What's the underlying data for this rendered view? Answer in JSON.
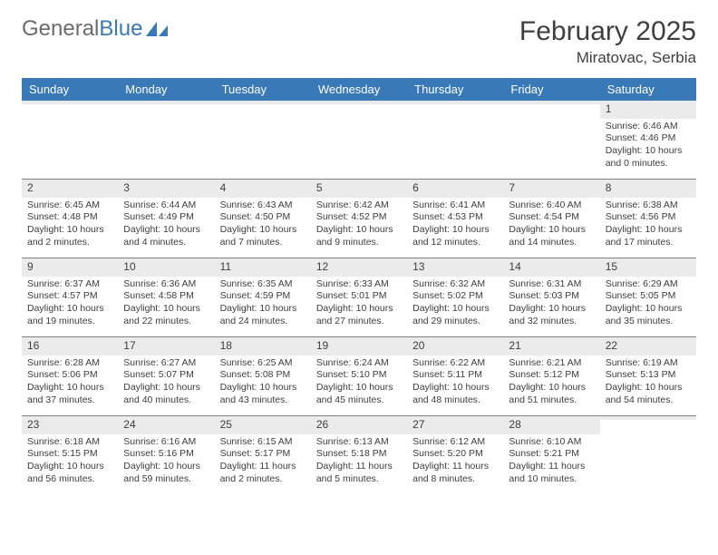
{
  "branding": {
    "logo_text_1": "General",
    "logo_text_2": "Blue",
    "logo_color_gray": "#6b6b6b",
    "logo_color_blue": "#3a79b7"
  },
  "header": {
    "month_title": "February 2025",
    "location": "Miratovac, Serbia"
  },
  "colors": {
    "header_bg": "#3a79b7",
    "header_text": "#ffffff",
    "daynum_bg": "#ebebeb",
    "rule": "#808080",
    "text": "#3d3d3d",
    "background": "#ffffff"
  },
  "typography": {
    "month_fontsize": 30,
    "location_fontsize": 17,
    "dayheader_fontsize": 13,
    "cell_fontsize": 10.5
  },
  "day_headers": [
    "Sunday",
    "Monday",
    "Tuesday",
    "Wednesday",
    "Thursday",
    "Friday",
    "Saturday"
  ],
  "weeks": [
    [
      {
        "num": "",
        "sunrise": "",
        "sunset": "",
        "daylight": ""
      },
      {
        "num": "",
        "sunrise": "",
        "sunset": "",
        "daylight": ""
      },
      {
        "num": "",
        "sunrise": "",
        "sunset": "",
        "daylight": ""
      },
      {
        "num": "",
        "sunrise": "",
        "sunset": "",
        "daylight": ""
      },
      {
        "num": "",
        "sunrise": "",
        "sunset": "",
        "daylight": ""
      },
      {
        "num": "",
        "sunrise": "",
        "sunset": "",
        "daylight": ""
      },
      {
        "num": "1",
        "sunrise": "Sunrise: 6:46 AM",
        "sunset": "Sunset: 4:46 PM",
        "daylight": "Daylight: 10 hours and 0 minutes."
      }
    ],
    [
      {
        "num": "2",
        "sunrise": "Sunrise: 6:45 AM",
        "sunset": "Sunset: 4:48 PM",
        "daylight": "Daylight: 10 hours and 2 minutes."
      },
      {
        "num": "3",
        "sunrise": "Sunrise: 6:44 AM",
        "sunset": "Sunset: 4:49 PM",
        "daylight": "Daylight: 10 hours and 4 minutes."
      },
      {
        "num": "4",
        "sunrise": "Sunrise: 6:43 AM",
        "sunset": "Sunset: 4:50 PM",
        "daylight": "Daylight: 10 hours and 7 minutes."
      },
      {
        "num": "5",
        "sunrise": "Sunrise: 6:42 AM",
        "sunset": "Sunset: 4:52 PM",
        "daylight": "Daylight: 10 hours and 9 minutes."
      },
      {
        "num": "6",
        "sunrise": "Sunrise: 6:41 AM",
        "sunset": "Sunset: 4:53 PM",
        "daylight": "Daylight: 10 hours and 12 minutes."
      },
      {
        "num": "7",
        "sunrise": "Sunrise: 6:40 AM",
        "sunset": "Sunset: 4:54 PM",
        "daylight": "Daylight: 10 hours and 14 minutes."
      },
      {
        "num": "8",
        "sunrise": "Sunrise: 6:38 AM",
        "sunset": "Sunset: 4:56 PM",
        "daylight": "Daylight: 10 hours and 17 minutes."
      }
    ],
    [
      {
        "num": "9",
        "sunrise": "Sunrise: 6:37 AM",
        "sunset": "Sunset: 4:57 PM",
        "daylight": "Daylight: 10 hours and 19 minutes."
      },
      {
        "num": "10",
        "sunrise": "Sunrise: 6:36 AM",
        "sunset": "Sunset: 4:58 PM",
        "daylight": "Daylight: 10 hours and 22 minutes."
      },
      {
        "num": "11",
        "sunrise": "Sunrise: 6:35 AM",
        "sunset": "Sunset: 4:59 PM",
        "daylight": "Daylight: 10 hours and 24 minutes."
      },
      {
        "num": "12",
        "sunrise": "Sunrise: 6:33 AM",
        "sunset": "Sunset: 5:01 PM",
        "daylight": "Daylight: 10 hours and 27 minutes."
      },
      {
        "num": "13",
        "sunrise": "Sunrise: 6:32 AM",
        "sunset": "Sunset: 5:02 PM",
        "daylight": "Daylight: 10 hours and 29 minutes."
      },
      {
        "num": "14",
        "sunrise": "Sunrise: 6:31 AM",
        "sunset": "Sunset: 5:03 PM",
        "daylight": "Daylight: 10 hours and 32 minutes."
      },
      {
        "num": "15",
        "sunrise": "Sunrise: 6:29 AM",
        "sunset": "Sunset: 5:05 PM",
        "daylight": "Daylight: 10 hours and 35 minutes."
      }
    ],
    [
      {
        "num": "16",
        "sunrise": "Sunrise: 6:28 AM",
        "sunset": "Sunset: 5:06 PM",
        "daylight": "Daylight: 10 hours and 37 minutes."
      },
      {
        "num": "17",
        "sunrise": "Sunrise: 6:27 AM",
        "sunset": "Sunset: 5:07 PM",
        "daylight": "Daylight: 10 hours and 40 minutes."
      },
      {
        "num": "18",
        "sunrise": "Sunrise: 6:25 AM",
        "sunset": "Sunset: 5:08 PM",
        "daylight": "Daylight: 10 hours and 43 minutes."
      },
      {
        "num": "19",
        "sunrise": "Sunrise: 6:24 AM",
        "sunset": "Sunset: 5:10 PM",
        "daylight": "Daylight: 10 hours and 45 minutes."
      },
      {
        "num": "20",
        "sunrise": "Sunrise: 6:22 AM",
        "sunset": "Sunset: 5:11 PM",
        "daylight": "Daylight: 10 hours and 48 minutes."
      },
      {
        "num": "21",
        "sunrise": "Sunrise: 6:21 AM",
        "sunset": "Sunset: 5:12 PM",
        "daylight": "Daylight: 10 hours and 51 minutes."
      },
      {
        "num": "22",
        "sunrise": "Sunrise: 6:19 AM",
        "sunset": "Sunset: 5:13 PM",
        "daylight": "Daylight: 10 hours and 54 minutes."
      }
    ],
    [
      {
        "num": "23",
        "sunrise": "Sunrise: 6:18 AM",
        "sunset": "Sunset: 5:15 PM",
        "daylight": "Daylight: 10 hours and 56 minutes."
      },
      {
        "num": "24",
        "sunrise": "Sunrise: 6:16 AM",
        "sunset": "Sunset: 5:16 PM",
        "daylight": "Daylight: 10 hours and 59 minutes."
      },
      {
        "num": "25",
        "sunrise": "Sunrise: 6:15 AM",
        "sunset": "Sunset: 5:17 PM",
        "daylight": "Daylight: 11 hours and 2 minutes."
      },
      {
        "num": "26",
        "sunrise": "Sunrise: 6:13 AM",
        "sunset": "Sunset: 5:18 PM",
        "daylight": "Daylight: 11 hours and 5 minutes."
      },
      {
        "num": "27",
        "sunrise": "Sunrise: 6:12 AM",
        "sunset": "Sunset: 5:20 PM",
        "daylight": "Daylight: 11 hours and 8 minutes."
      },
      {
        "num": "28",
        "sunrise": "Sunrise: 6:10 AM",
        "sunset": "Sunset: 5:21 PM",
        "daylight": "Daylight: 11 hours and 10 minutes."
      },
      {
        "num": "",
        "sunrise": "",
        "sunset": "",
        "daylight": ""
      }
    ]
  ]
}
